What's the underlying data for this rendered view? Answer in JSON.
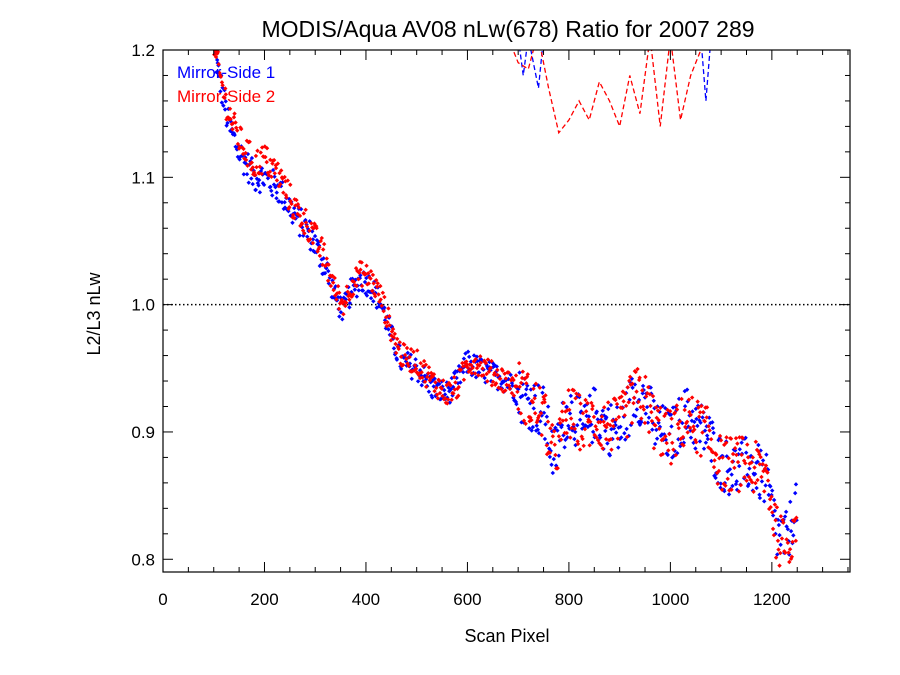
{
  "chart_data": {
    "type": "scatter",
    "title": "MODIS/Aqua AV08 nLw(678) Ratio for 2007 289",
    "xlabel": "Scan Pixel",
    "ylabel": "L2/L3 nLw",
    "xlim": [
      0,
      1354
    ],
    "ylim": [
      0.79,
      1.2
    ],
    "xticks": [
      0,
      200,
      400,
      600,
      800,
      1000,
      1200
    ],
    "xtick_labels": [
      "0",
      "200",
      "400",
      "600",
      "800",
      "1000",
      "1200"
    ],
    "yticks": [
      0.8,
      0.9,
      1.0,
      1.1,
      1.2
    ],
    "ytick_labels": [
      "0.8",
      "0.9",
      "1.0",
      "1.1",
      "1.2"
    ],
    "reference_line": 1.0,
    "legend_position": "top-left",
    "grid": false,
    "series": [
      {
        "name": "Mirror-Side 1",
        "color": "#0000ff",
        "points_trend_x": [
          100,
          130,
          150,
          180,
          200,
          230,
          260,
          290,
          320,
          340,
          355,
          370,
          390,
          410,
          430,
          450,
          470,
          500,
          530,
          560,
          580,
          600,
          620,
          650,
          680,
          700,
          720,
          750,
          770,
          800,
          830,
          850,
          870,
          900,
          930,
          950,
          970,
          1000,
          1030,
          1050,
          1070,
          1100,
          1130,
          1150,
          1170,
          1190,
          1210,
          1230,
          1250
        ],
        "points_trend_y": [
          1.2,
          1.14,
          1.12,
          1.1,
          1.1,
          1.09,
          1.07,
          1.055,
          1.03,
          1.005,
          0.995,
          1.01,
          1.02,
          1.015,
          1.0,
          0.975,
          0.955,
          0.95,
          0.935,
          0.93,
          0.94,
          0.955,
          0.95,
          0.945,
          0.94,
          0.93,
          0.925,
          0.915,
          0.88,
          0.92,
          0.9,
          0.915,
          0.905,
          0.9,
          0.93,
          0.925,
          0.905,
          0.895,
          0.915,
          0.905,
          0.9,
          0.875,
          0.87,
          0.875,
          0.87,
          0.86,
          0.82,
          0.815,
          0.85
        ],
        "curve_x": [
          570,
          575,
          700,
          710,
          720,
          730,
          740,
          750,
          1060,
          1070,
          1080,
          1090
        ],
        "curve_y": [
          1.21,
          1.205,
          1.21,
          1.18,
          1.21,
          1.19,
          1.17,
          1.21,
          1.21,
          1.16,
          1.21,
          1.2
        ]
      },
      {
        "name": "Mirror-Side 2",
        "color": "#ff0000",
        "points_trend_x": [
          100,
          130,
          150,
          180,
          200,
          230,
          260,
          290,
          320,
          340,
          355,
          370,
          390,
          410,
          430,
          450,
          470,
          500,
          530,
          560,
          580,
          600,
          620,
          650,
          680,
          700,
          720,
          750,
          770,
          800,
          830,
          850,
          870,
          900,
          930,
          950,
          970,
          1000,
          1030,
          1050,
          1070,
          1100,
          1130,
          1150,
          1170,
          1190,
          1210,
          1230,
          1250
        ],
        "points_trend_y": [
          1.2,
          1.15,
          1.13,
          1.11,
          1.115,
          1.1,
          1.075,
          1.06,
          1.035,
          1.01,
          1.0,
          1.015,
          1.025,
          1.02,
          1.005,
          0.98,
          0.96,
          0.955,
          0.94,
          0.93,
          0.935,
          0.955,
          0.955,
          0.945,
          0.94,
          0.935,
          0.925,
          0.915,
          0.88,
          0.915,
          0.905,
          0.91,
          0.905,
          0.905,
          0.93,
          0.925,
          0.905,
          0.895,
          0.91,
          0.905,
          0.9,
          0.875,
          0.875,
          0.875,
          0.87,
          0.865,
          0.82,
          0.805,
          0.84
        ],
        "curve_x": [
          680,
          700,
          720,
          730,
          740,
          760,
          780,
          800,
          820,
          840,
          860,
          880,
          900,
          920,
          940,
          960,
          980,
          1000,
          1020,
          1040,
          1060,
          1080
        ],
        "curve_y": [
          1.21,
          1.19,
          1.185,
          1.2,
          1.21,
          1.17,
          1.135,
          1.145,
          1.16,
          1.145,
          1.175,
          1.16,
          1.14,
          1.18,
          1.15,
          1.21,
          1.14,
          1.21,
          1.145,
          1.18,
          1.2,
          1.21
        ]
      }
    ]
  }
}
